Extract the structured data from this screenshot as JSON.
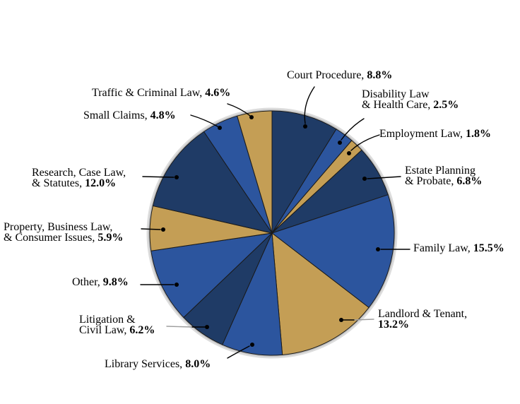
{
  "chart_data": {
    "type": "pie",
    "unit": "%",
    "start_angle": "12-o-clock-clockwise",
    "legend": "none",
    "colors": {
      "navy": "#1F3B66",
      "blue": "#2C559E",
      "tan": "#C49E55",
      "outline": "#1A1A1A",
      "leader_black": "#000000",
      "leader_gray": "#9E9E9E",
      "label_text": "#000000",
      "background": "#FFFFFF"
    },
    "slices": [
      {
        "label": "Court Procedure",
        "value": 8.8,
        "pct_label": "8.8%",
        "line1": "Court Procedure, ",
        "color": "navy"
      },
      {
        "label": "Disability Law & Health Care",
        "value": 2.5,
        "pct_label": "2.5%",
        "line1": "Disability Law",
        "line2": "& Health Care, ",
        "color": "blue"
      },
      {
        "label": "Employment Law",
        "value": 1.8,
        "pct_label": "1.8%",
        "line1": "Employment Law, ",
        "color": "tan"
      },
      {
        "label": "Estate Planning & Probate",
        "value": 6.8,
        "pct_label": "6.8%",
        "line1": "Estate Planning",
        "line2": "& Probate, ",
        "color": "navy"
      },
      {
        "label": "Family Law",
        "value": 15.5,
        "pct_label": "15.5%",
        "line1": "Family Law, ",
        "color": "blue"
      },
      {
        "label": "Landlord & Tenant",
        "value": 13.2,
        "pct_label": "13.2%",
        "line1": "Landlord & Tenant,",
        "line2": "",
        "color": "tan"
      },
      {
        "label": "Library Services",
        "value": 8.0,
        "pct_label": "8.0%",
        "line1": "Library Services, ",
        "color": "blue"
      },
      {
        "label": "Litigation & Civil Law",
        "value": 6.2,
        "pct_label": "6.2%",
        "line1": "Litigation &",
        "line2": "Civil Law, ",
        "color": "navy"
      },
      {
        "label": "Other",
        "value": 9.8,
        "pct_label": "9.8%",
        "line1": "Other, ",
        "color": "blue"
      },
      {
        "label": "Property, Business Law, & Consumer Issues",
        "value": 5.9,
        "pct_label": "5.9%",
        "line1": "Property, Business Law,",
        "line2": "& Consumer Issues, ",
        "color": "tan"
      },
      {
        "label": "Research, Case Law, & Statutes",
        "value": 12.0,
        "pct_label": "12.0%",
        "line1": "Research, Case Law,",
        "line2": "& Statutes, ",
        "color": "navy"
      },
      {
        "label": "Small Claims",
        "value": 4.8,
        "pct_label": "4.8%",
        "line1": "Small Claims, ",
        "color": "blue"
      },
      {
        "label": "Traffic & Criminal Law",
        "value": 4.6,
        "pct_label": "4.6%",
        "line1": "Traffic & Criminal Law, ",
        "color": "tan"
      }
    ]
  }
}
